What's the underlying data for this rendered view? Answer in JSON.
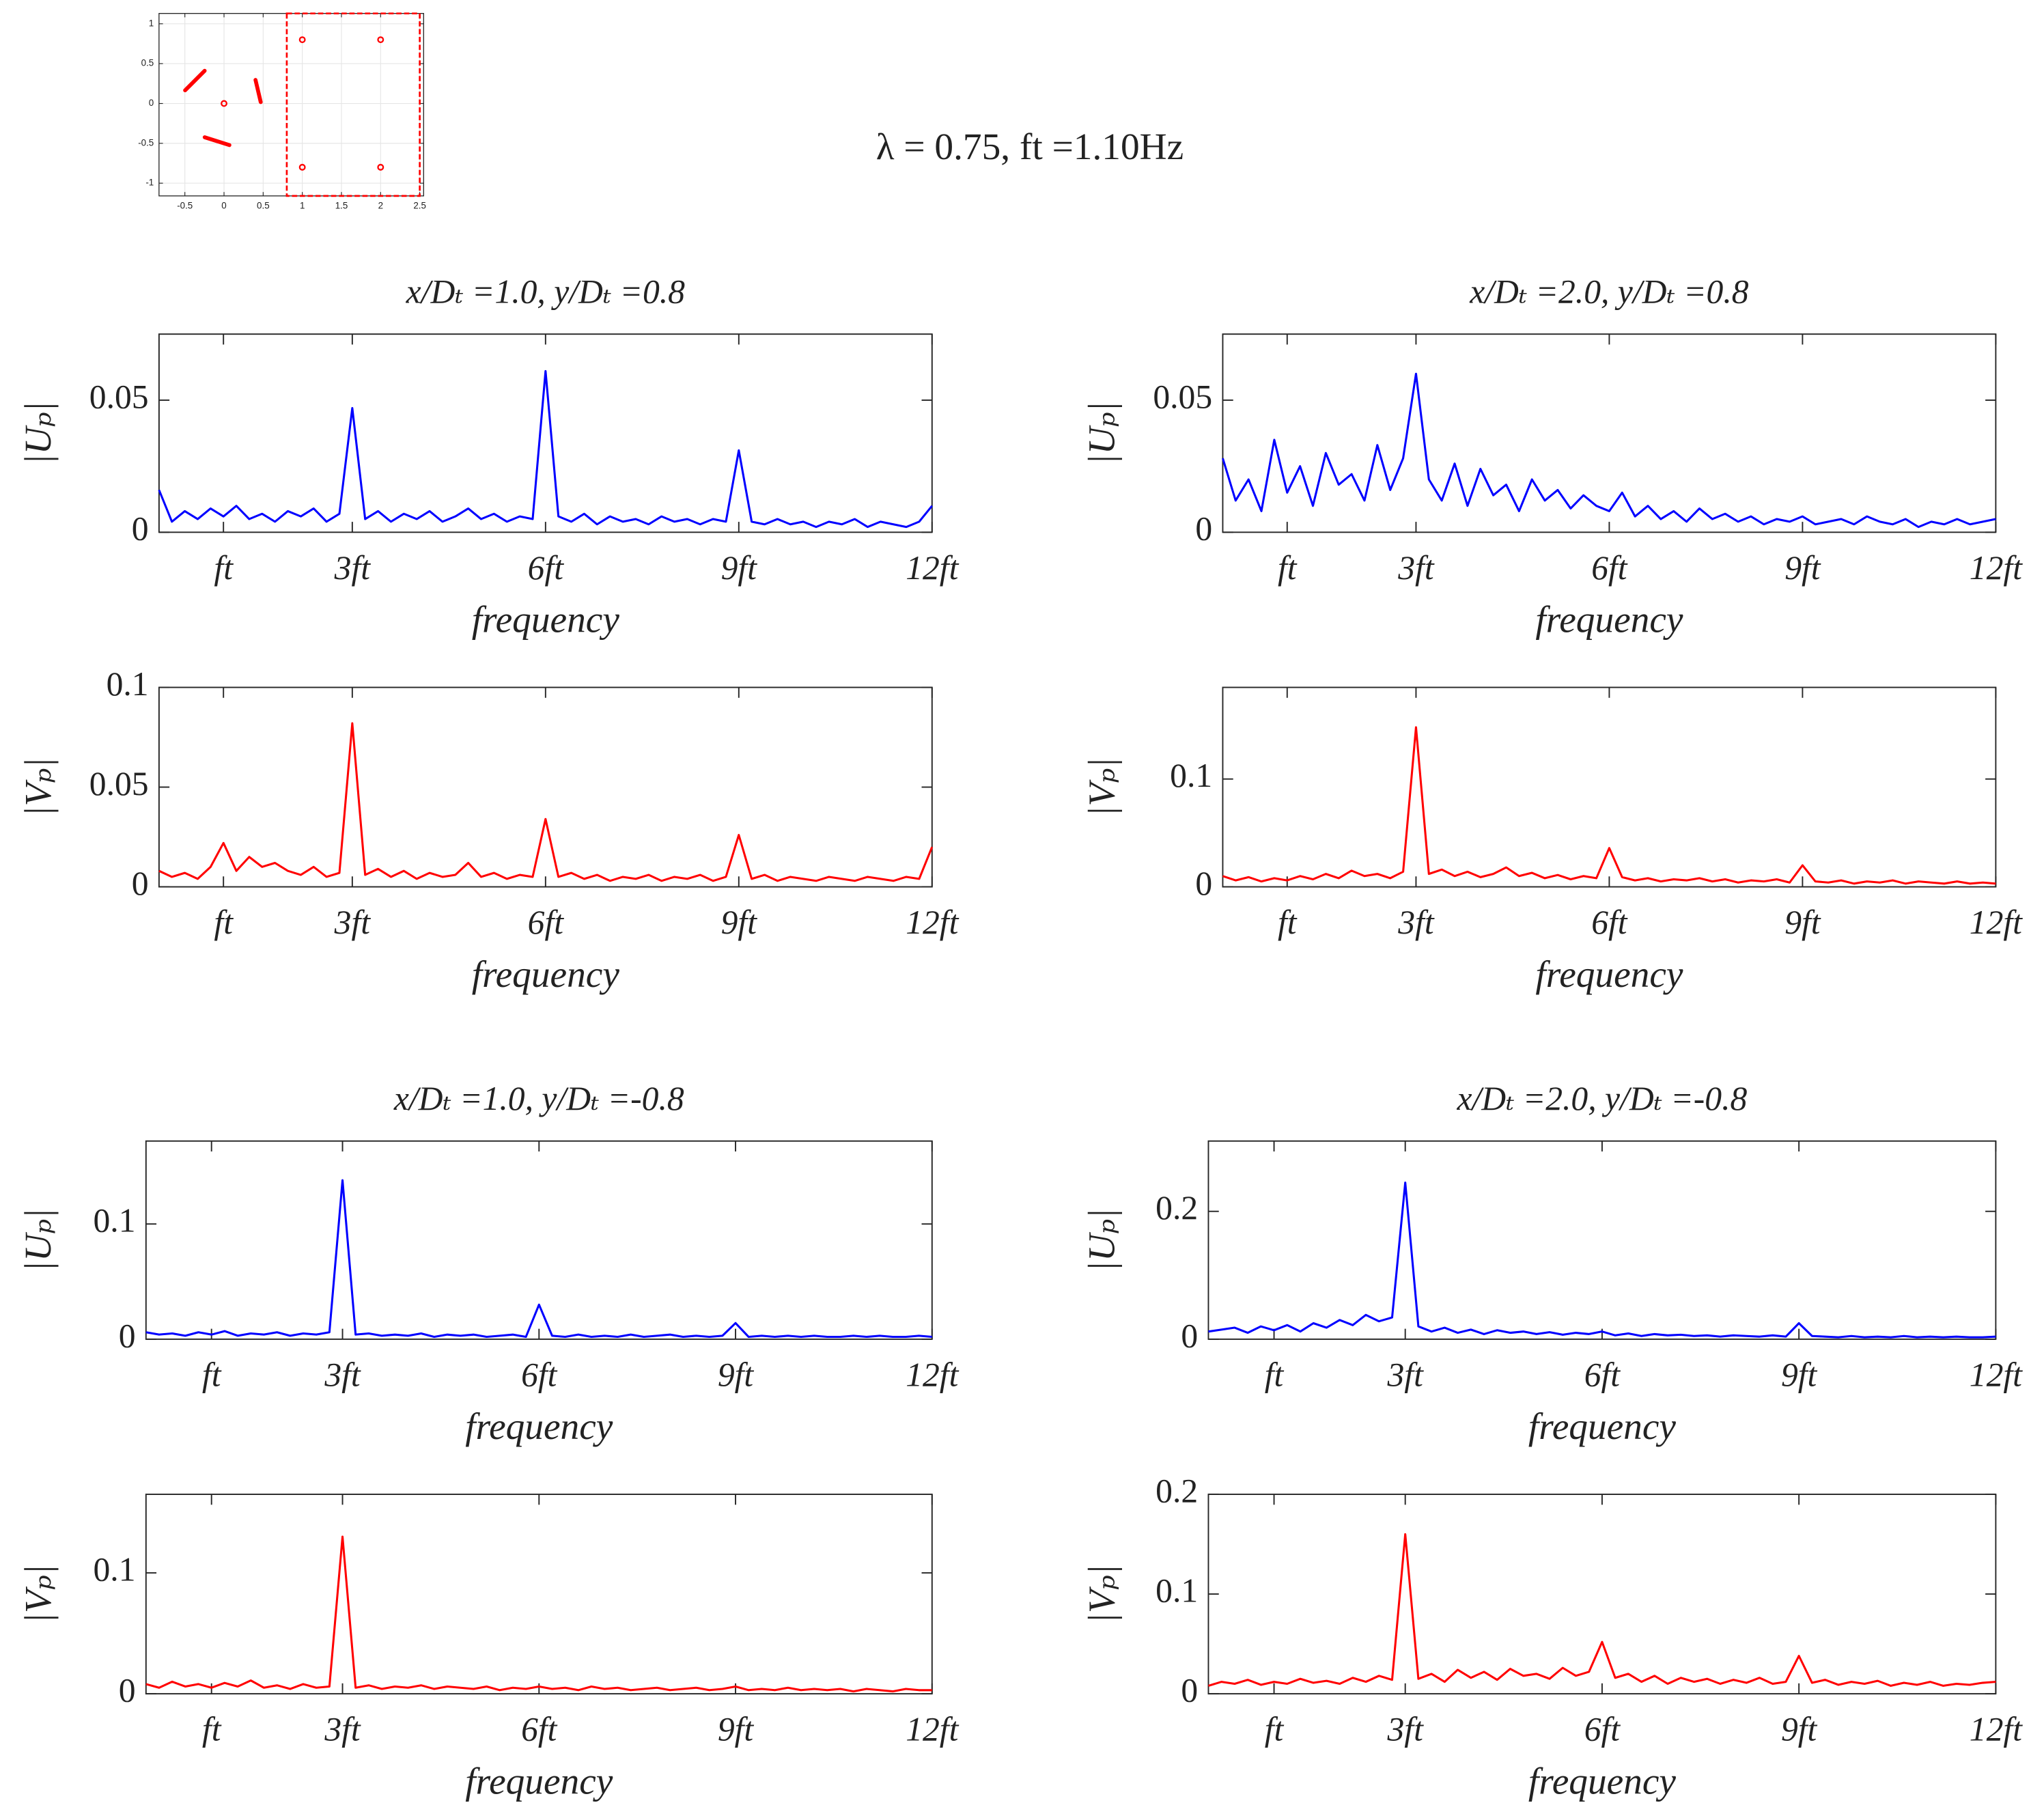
{
  "title": "λ = 0.75, ft =1.10Hz",
  "chart_data": [
    {
      "type": "scatter",
      "x": [
        0,
        1,
        2,
        1,
        2
      ],
      "y": [
        0,
        0.8,
        0.8,
        -0.8,
        -0.8
      ],
      "color": "#ff0000",
      "grid": true,
      "xlim": [
        -0.83,
        2.55
      ],
      "ylim": [
        -1.16,
        1.13
      ],
      "xticks": [
        -0.5,
        0,
        0.5,
        1,
        1.5,
        2,
        2.5
      ],
      "yticks": [
        -1,
        -0.5,
        0,
        0.5,
        1
      ]
    },
    {
      "type": "line",
      "title": "x/Dₜ =1.0, y/Dₜ =0.8",
      "xlabel": "frequency",
      "ylabel": "|Uₚ|",
      "color": "#0000ff",
      "xlim": [
        0,
        12
      ],
      "ylim": [
        0,
        0.075
      ],
      "yticks": [
        0,
        0.05
      ],
      "xticks": [
        {
          "value": 1,
          "label": "ft"
        },
        {
          "value": 3,
          "label": "3ft"
        },
        {
          "value": 6,
          "label": "6ft"
        },
        {
          "value": 9,
          "label": "9ft"
        },
        {
          "value": 12,
          "label": "12ft"
        }
      ],
      "x": [
        0,
        0.2,
        0.4,
        0.6,
        0.8,
        1,
        1.2,
        1.4,
        1.6,
        1.8,
        2,
        2.2,
        2.4,
        2.6,
        2.8,
        3,
        3.2,
        3.4,
        3.6,
        3.8,
        4,
        4.2,
        4.4,
        4.6,
        4.8,
        5,
        5.2,
        5.4,
        5.6,
        5.8,
        6,
        6.2,
        6.4,
        6.6,
        6.8,
        7,
        7.2,
        7.4,
        7.6,
        7.8,
        8,
        8.2,
        8.4,
        8.6,
        8.8,
        9,
        9.2,
        9.4,
        9.6,
        9.8,
        10,
        10.2,
        10.4,
        10.6,
        10.8,
        11,
        11.2,
        11.4,
        11.6,
        11.8,
        12
      ],
      "values": [
        0.016,
        0.004,
        0.008,
        0.005,
        0.009,
        0.006,
        0.01,
        0.005,
        0.007,
        0.004,
        0.008,
        0.006,
        0.009,
        0.004,
        0.007,
        0.047,
        0.005,
        0.008,
        0.004,
        0.007,
        0.005,
        0.008,
        0.004,
        0.006,
        0.009,
        0.005,
        0.007,
        0.004,
        0.006,
        0.005,
        0.061,
        0.006,
        0.004,
        0.007,
        0.003,
        0.006,
        0.004,
        0.005,
        0.003,
        0.006,
        0.004,
        0.005,
        0.003,
        0.005,
        0.004,
        0.031,
        0.004,
        0.003,
        0.005,
        0.003,
        0.004,
        0.002,
        0.004,
        0.003,
        0.005,
        0.002,
        0.004,
        0.003,
        0.002,
        0.004,
        0.01
      ]
    },
    {
      "type": "line",
      "title": "x/Dₜ =2.0, y/Dₜ =0.8",
      "xlabel": "frequency",
      "ylabel": "|Uₚ|",
      "color": "#0000ff",
      "xlim": [
        0,
        12
      ],
      "ylim": [
        0,
        0.075
      ],
      "yticks": [
        0,
        0.05
      ],
      "xticks": [
        {
          "value": 1,
          "label": "ft"
        },
        {
          "value": 3,
          "label": "3ft"
        },
        {
          "value": 6,
          "label": "6ft"
        },
        {
          "value": 9,
          "label": "9ft"
        },
        {
          "value": 12,
          "label": "12ft"
        }
      ],
      "x": [
        0,
        0.2,
        0.4,
        0.6,
        0.8,
        1,
        1.2,
        1.4,
        1.6,
        1.8,
        2,
        2.2,
        2.4,
        2.6,
        2.8,
        3,
        3.2,
        3.4,
        3.6,
        3.8,
        4,
        4.2,
        4.4,
        4.6,
        4.8,
        5,
        5.2,
        5.4,
        5.6,
        5.8,
        6,
        6.2,
        6.4,
        6.6,
        6.8,
        7,
        7.2,
        7.4,
        7.6,
        7.8,
        8,
        8.2,
        8.4,
        8.6,
        8.8,
        9,
        9.2,
        9.4,
        9.6,
        9.8,
        10,
        10.2,
        10.4,
        10.6,
        10.8,
        11,
        11.2,
        11.4,
        11.6,
        11.8,
        12
      ],
      "values": [
        0.028,
        0.012,
        0.02,
        0.008,
        0.035,
        0.015,
        0.025,
        0.01,
        0.03,
        0.018,
        0.022,
        0.012,
        0.033,
        0.016,
        0.028,
        0.06,
        0.02,
        0.012,
        0.026,
        0.01,
        0.024,
        0.014,
        0.018,
        0.008,
        0.02,
        0.012,
        0.016,
        0.009,
        0.014,
        0.01,
        0.008,
        0.015,
        0.006,
        0.01,
        0.005,
        0.008,
        0.004,
        0.009,
        0.005,
        0.007,
        0.004,
        0.006,
        0.003,
        0.005,
        0.004,
        0.006,
        0.003,
        0.004,
        0.005,
        0.003,
        0.006,
        0.004,
        0.003,
        0.005,
        0.002,
        0.004,
        0.003,
        0.005,
        0.003,
        0.004,
        0.005
      ]
    },
    {
      "type": "line",
      "xlabel": "frequency",
      "ylabel": "|Vₚ|",
      "color": "#ff0000",
      "xlim": [
        0,
        12
      ],
      "ylim": [
        0,
        0.1
      ],
      "yticks": [
        0,
        0.05,
        0.1
      ],
      "xticks": [
        {
          "value": 1,
          "label": "ft"
        },
        {
          "value": 3,
          "label": "3ft"
        },
        {
          "value": 6,
          "label": "6ft"
        },
        {
          "value": 9,
          "label": "9ft"
        },
        {
          "value": 12,
          "label": "12ft"
        }
      ],
      "x": [
        0,
        0.2,
        0.4,
        0.6,
        0.8,
        1,
        1.2,
        1.4,
        1.6,
        1.8,
        2,
        2.2,
        2.4,
        2.6,
        2.8,
        3,
        3.2,
        3.4,
        3.6,
        3.8,
        4,
        4.2,
        4.4,
        4.6,
        4.8,
        5,
        5.2,
        5.4,
        5.6,
        5.8,
        6,
        6.2,
        6.4,
        6.6,
        6.8,
        7,
        7.2,
        7.4,
        7.6,
        7.8,
        8,
        8.2,
        8.4,
        8.6,
        8.8,
        9,
        9.2,
        9.4,
        9.6,
        9.8,
        10,
        10.2,
        10.4,
        10.6,
        10.8,
        11,
        11.2,
        11.4,
        11.6,
        11.8,
        12
      ],
      "values": [
        0.008,
        0.005,
        0.007,
        0.004,
        0.01,
        0.022,
        0.008,
        0.015,
        0.01,
        0.012,
        0.008,
        0.006,
        0.01,
        0.005,
        0.007,
        0.082,
        0.006,
        0.009,
        0.005,
        0.008,
        0.004,
        0.007,
        0.005,
        0.006,
        0.012,
        0.005,
        0.007,
        0.004,
        0.006,
        0.005,
        0.034,
        0.005,
        0.007,
        0.004,
        0.006,
        0.003,
        0.005,
        0.004,
        0.006,
        0.003,
        0.005,
        0.004,
        0.006,
        0.003,
        0.005,
        0.026,
        0.004,
        0.006,
        0.003,
        0.005,
        0.004,
        0.003,
        0.005,
        0.004,
        0.003,
        0.005,
        0.004,
        0.003,
        0.005,
        0.004,
        0.02
      ]
    },
    {
      "type": "line",
      "xlabel": "frequency",
      "ylabel": "|Vₚ|",
      "color": "#ff0000",
      "xlim": [
        0,
        12
      ],
      "ylim": [
        0,
        0.185
      ],
      "yticks": [
        0,
        0.1
      ],
      "xticks": [
        {
          "value": 1,
          "label": "ft"
        },
        {
          "value": 3,
          "label": "3ft"
        },
        {
          "value": 6,
          "label": "6ft"
        },
        {
          "value": 9,
          "label": "9ft"
        },
        {
          "value": 12,
          "label": "12ft"
        }
      ],
      "x": [
        0,
        0.2,
        0.4,
        0.6,
        0.8,
        1,
        1.2,
        1.4,
        1.6,
        1.8,
        2,
        2.2,
        2.4,
        2.6,
        2.8,
        3,
        3.2,
        3.4,
        3.6,
        3.8,
        4,
        4.2,
        4.4,
        4.6,
        4.8,
        5,
        5.2,
        5.4,
        5.6,
        5.8,
        6,
        6.2,
        6.4,
        6.6,
        6.8,
        7,
        7.2,
        7.4,
        7.6,
        7.8,
        8,
        8.2,
        8.4,
        8.6,
        8.8,
        9,
        9.2,
        9.4,
        9.6,
        9.8,
        10,
        10.2,
        10.4,
        10.6,
        10.8,
        11,
        11.2,
        11.4,
        11.6,
        11.8,
        12
      ],
      "values": [
        0.01,
        0.006,
        0.009,
        0.005,
        0.008,
        0.006,
        0.01,
        0.007,
        0.012,
        0.008,
        0.015,
        0.01,
        0.012,
        0.008,
        0.014,
        0.148,
        0.012,
        0.016,
        0.01,
        0.014,
        0.009,
        0.012,
        0.018,
        0.01,
        0.013,
        0.008,
        0.011,
        0.007,
        0.01,
        0.008,
        0.036,
        0.009,
        0.006,
        0.008,
        0.005,
        0.007,
        0.006,
        0.008,
        0.005,
        0.007,
        0.004,
        0.006,
        0.005,
        0.007,
        0.004,
        0.02,
        0.005,
        0.004,
        0.006,
        0.003,
        0.005,
        0.004,
        0.006,
        0.003,
        0.005,
        0.004,
        0.003,
        0.005,
        0.003,
        0.004,
        0.003
      ]
    },
    {
      "type": "line",
      "title": "x/Dₜ =1.0, y/Dₜ =-0.8",
      "xlabel": "frequency",
      "ylabel": "|Uₚ|",
      "color": "#0000ff",
      "xlim": [
        0,
        12
      ],
      "ylim": [
        0,
        0.172
      ],
      "yticks": [
        0,
        0.1
      ],
      "xticks": [
        {
          "value": 1,
          "label": "ft"
        },
        {
          "value": 3,
          "label": "3ft"
        },
        {
          "value": 6,
          "label": "6ft"
        },
        {
          "value": 9,
          "label": "9ft"
        },
        {
          "value": 12,
          "label": "12ft"
        }
      ],
      "x": [
        0,
        0.2,
        0.4,
        0.6,
        0.8,
        1,
        1.2,
        1.4,
        1.6,
        1.8,
        2,
        2.2,
        2.4,
        2.6,
        2.8,
        3,
        3.2,
        3.4,
        3.6,
        3.8,
        4,
        4.2,
        4.4,
        4.6,
        4.8,
        5,
        5.2,
        5.4,
        5.6,
        5.8,
        6,
        6.2,
        6.4,
        6.6,
        6.8,
        7,
        7.2,
        7.4,
        7.6,
        7.8,
        8,
        8.2,
        8.4,
        8.6,
        8.8,
        9,
        9.2,
        9.4,
        9.6,
        9.8,
        10,
        10.2,
        10.4,
        10.6,
        10.8,
        11,
        11.2,
        11.4,
        11.6,
        11.8,
        12
      ],
      "values": [
        0.006,
        0.004,
        0.005,
        0.003,
        0.006,
        0.004,
        0.007,
        0.003,
        0.005,
        0.004,
        0.006,
        0.003,
        0.005,
        0.004,
        0.006,
        0.138,
        0.004,
        0.005,
        0.003,
        0.004,
        0.003,
        0.005,
        0.002,
        0.004,
        0.003,
        0.004,
        0.002,
        0.003,
        0.004,
        0.002,
        0.03,
        0.003,
        0.002,
        0.004,
        0.002,
        0.003,
        0.002,
        0.004,
        0.002,
        0.003,
        0.004,
        0.002,
        0.003,
        0.002,
        0.003,
        0.014,
        0.002,
        0.003,
        0.002,
        0.003,
        0.002,
        0.003,
        0.002,
        0.002,
        0.003,
        0.002,
        0.003,
        0.002,
        0.002,
        0.003,
        0.002
      ]
    },
    {
      "type": "line",
      "title": "x/Dₜ =2.0, y/Dₜ =-0.8",
      "xlabel": "frequency",
      "ylabel": "|Uₚ|",
      "color": "#0000ff",
      "xlim": [
        0,
        12
      ],
      "ylim": [
        0,
        0.31
      ],
      "yticks": [
        0,
        0.2
      ],
      "xticks": [
        {
          "value": 1,
          "label": "ft"
        },
        {
          "value": 3,
          "label": "3ft"
        },
        {
          "value": 6,
          "label": "6ft"
        },
        {
          "value": 9,
          "label": "9ft"
        },
        {
          "value": 12,
          "label": "12ft"
        }
      ],
      "x": [
        0,
        0.2,
        0.4,
        0.6,
        0.8,
        1,
        1.2,
        1.4,
        1.6,
        1.8,
        2,
        2.2,
        2.4,
        2.6,
        2.8,
        3,
        3.2,
        3.4,
        3.6,
        3.8,
        4,
        4.2,
        4.4,
        4.6,
        4.8,
        5,
        5.2,
        5.4,
        5.6,
        5.8,
        6,
        6.2,
        6.4,
        6.6,
        6.8,
        7,
        7.2,
        7.4,
        7.6,
        7.8,
        8,
        8.2,
        8.4,
        8.6,
        8.8,
        9,
        9.2,
        9.4,
        9.6,
        9.8,
        10,
        10.2,
        10.4,
        10.6,
        10.8,
        11,
        11.2,
        11.4,
        11.6,
        11.8,
        12
      ],
      "values": [
        0.012,
        0.015,
        0.018,
        0.01,
        0.02,
        0.014,
        0.022,
        0.012,
        0.025,
        0.018,
        0.03,
        0.022,
        0.038,
        0.028,
        0.034,
        0.245,
        0.02,
        0.012,
        0.018,
        0.01,
        0.015,
        0.008,
        0.014,
        0.01,
        0.012,
        0.008,
        0.011,
        0.007,
        0.01,
        0.008,
        0.012,
        0.006,
        0.009,
        0.005,
        0.008,
        0.006,
        0.007,
        0.005,
        0.006,
        0.004,
        0.006,
        0.005,
        0.004,
        0.006,
        0.004,
        0.025,
        0.005,
        0.004,
        0.003,
        0.005,
        0.003,
        0.004,
        0.003,
        0.005,
        0.003,
        0.004,
        0.003,
        0.004,
        0.003,
        0.003,
        0.004
      ]
    },
    {
      "type": "line",
      "xlabel": "frequency",
      "ylabel": "|Vₚ|",
      "color": "#ff0000",
      "xlim": [
        0,
        12
      ],
      "ylim": [
        0,
        0.165
      ],
      "yticks": [
        0,
        0.1
      ],
      "xticks": [
        {
          "value": 1,
          "label": "ft"
        },
        {
          "value": 3,
          "label": "3ft"
        },
        {
          "value": 6,
          "label": "6ft"
        },
        {
          "value": 9,
          "label": "9ft"
        },
        {
          "value": 12,
          "label": "12ft"
        }
      ],
      "x": [
        0,
        0.2,
        0.4,
        0.6,
        0.8,
        1,
        1.2,
        1.4,
        1.6,
        1.8,
        2,
        2.2,
        2.4,
        2.6,
        2.8,
        3,
        3.2,
        3.4,
        3.6,
        3.8,
        4,
        4.2,
        4.4,
        4.6,
        4.8,
        5,
        5.2,
        5.4,
        5.6,
        5.8,
        6,
        6.2,
        6.4,
        6.6,
        6.8,
        7,
        7.2,
        7.4,
        7.6,
        7.8,
        8,
        8.2,
        8.4,
        8.6,
        8.8,
        9,
        9.2,
        9.4,
        9.6,
        9.8,
        10,
        10.2,
        10.4,
        10.6,
        10.8,
        11,
        11.2,
        11.4,
        11.6,
        11.8,
        12
      ],
      "values": [
        0.008,
        0.005,
        0.01,
        0.006,
        0.008,
        0.005,
        0.009,
        0.006,
        0.011,
        0.005,
        0.007,
        0.004,
        0.008,
        0.005,
        0.006,
        0.13,
        0.005,
        0.007,
        0.004,
        0.006,
        0.005,
        0.007,
        0.004,
        0.006,
        0.005,
        0.004,
        0.006,
        0.003,
        0.005,
        0.004,
        0.006,
        0.004,
        0.005,
        0.003,
        0.006,
        0.004,
        0.005,
        0.003,
        0.004,
        0.005,
        0.003,
        0.004,
        0.005,
        0.003,
        0.004,
        0.006,
        0.003,
        0.004,
        0.003,
        0.005,
        0.003,
        0.004,
        0.003,
        0.004,
        0.002,
        0.004,
        0.003,
        0.002,
        0.004,
        0.003,
        0.003
      ]
    },
    {
      "type": "line",
      "xlabel": "frequency",
      "ylabel": "|Vₚ|",
      "color": "#ff0000",
      "xlim": [
        0,
        12
      ],
      "ylim": [
        0,
        0.2
      ],
      "yticks": [
        0,
        0.1,
        0.2
      ],
      "xticks": [
        {
          "value": 1,
          "label": "ft"
        },
        {
          "value": 3,
          "label": "3ft"
        },
        {
          "value": 6,
          "label": "6ft"
        },
        {
          "value": 9,
          "label": "9ft"
        },
        {
          "value": 12,
          "label": "12ft"
        }
      ],
      "x": [
        0,
        0.2,
        0.4,
        0.6,
        0.8,
        1,
        1.2,
        1.4,
        1.6,
        1.8,
        2,
        2.2,
        2.4,
        2.6,
        2.8,
        3,
        3.2,
        3.4,
        3.6,
        3.8,
        4,
        4.2,
        4.4,
        4.6,
        4.8,
        5,
        5.2,
        5.4,
        5.6,
        5.8,
        6,
        6.2,
        6.4,
        6.6,
        6.8,
        7,
        7.2,
        7.4,
        7.6,
        7.8,
        8,
        8.2,
        8.4,
        8.6,
        8.8,
        9,
        9.2,
        9.4,
        9.6,
        9.8,
        10,
        10.2,
        10.4,
        10.6,
        10.8,
        11,
        11.2,
        11.4,
        11.6,
        11.8,
        12
      ],
      "values": [
        0.008,
        0.012,
        0.01,
        0.014,
        0.009,
        0.012,
        0.01,
        0.015,
        0.011,
        0.013,
        0.01,
        0.016,
        0.012,
        0.018,
        0.014,
        0.16,
        0.015,
        0.02,
        0.012,
        0.024,
        0.016,
        0.022,
        0.014,
        0.025,
        0.018,
        0.02,
        0.015,
        0.026,
        0.018,
        0.022,
        0.052,
        0.016,
        0.02,
        0.012,
        0.018,
        0.01,
        0.016,
        0.012,
        0.015,
        0.01,
        0.014,
        0.011,
        0.016,
        0.01,
        0.012,
        0.038,
        0.011,
        0.014,
        0.009,
        0.012,
        0.01,
        0.013,
        0.008,
        0.011,
        0.009,
        0.012,
        0.008,
        0.01,
        0.009,
        0.011,
        0.012
      ]
    }
  ]
}
